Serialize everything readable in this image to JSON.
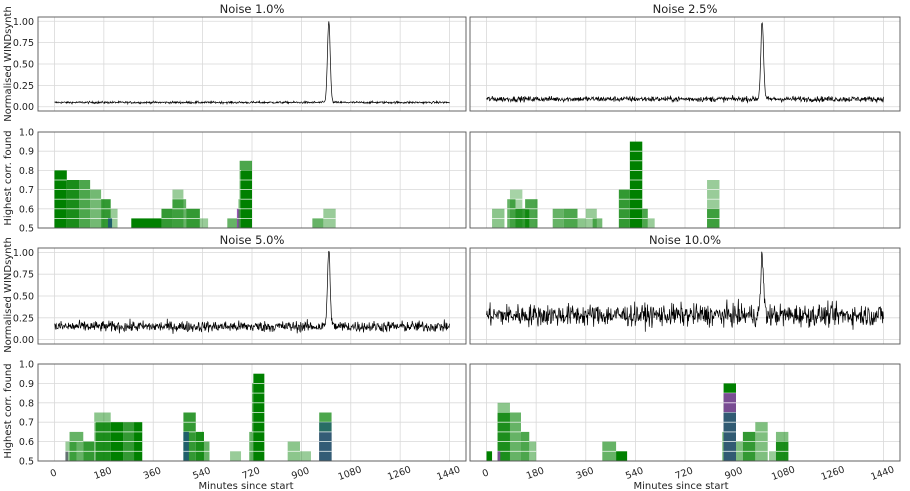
{
  "figure": {
    "xlabel": "Minutes since start",
    "ylabel_signal": "Normalised WINDsynth",
    "ylabel_corr": "Highest corr. found"
  },
  "colors": {
    "signal": "#000000",
    "green": "#008000",
    "purple": "#8e44ad",
    "teal": "#1f5f6b",
    "grid": "#d9d9d9",
    "frame": "#555555"
  },
  "chart_data": [
    {
      "type": "line",
      "title": "Noise 1.0%",
      "noise": 0.01,
      "baseline": 0.05,
      "peak_x": 1000,
      "peak_y": 1.0,
      "xlim": [
        -60,
        1500
      ],
      "ylim": [
        -0.05,
        1.05
      ],
      "yticks": [
        "0.00",
        "0.25",
        "0.50",
        "0.75",
        "1.00"
      ]
    },
    {
      "type": "line",
      "title": "Noise 2.5%",
      "noise": 0.025,
      "baseline": 0.09,
      "peak_x": 1000,
      "peak_y": 1.0,
      "xlim": [
        -60,
        1500
      ],
      "ylim": [
        -0.05,
        1.05
      ],
      "yticks": []
    },
    {
      "type": "bar",
      "title": "",
      "xlim": [
        -60,
        1500
      ],
      "ylim": [
        0.5,
        1.0
      ],
      "yticks": [
        "0.5",
        "0.6",
        "0.7",
        "0.8",
        "0.9",
        "1.0"
      ],
      "bars": [
        {
          "x": 0,
          "w": 45,
          "v": 0.8,
          "c": "green",
          "a": 1
        },
        {
          "x": 45,
          "w": 45,
          "v": 0.75,
          "c": "green",
          "a": 0.9
        },
        {
          "x": 90,
          "w": 40,
          "v": 0.75,
          "c": "green",
          "a": 0.7
        },
        {
          "x": 130,
          "w": 40,
          "v": 0.7,
          "c": "green",
          "a": 0.55
        },
        {
          "x": 170,
          "w": 35,
          "v": 0.65,
          "c": "green",
          "a": 0.8
        },
        {
          "x": 205,
          "w": 25,
          "v": 0.6,
          "c": "green",
          "a": 0.4
        },
        {
          "x": 195,
          "w": 15,
          "v": 0.55,
          "c": "teal",
          "a": 1
        },
        {
          "x": 280,
          "w": 110,
          "v": 0.55,
          "c": "green",
          "a": 1
        },
        {
          "x": 390,
          "w": 40,
          "v": 0.6,
          "c": "green",
          "a": 0.8
        },
        {
          "x": 430,
          "w": 40,
          "v": 0.7,
          "c": "green",
          "a": 0.4
        },
        {
          "x": 430,
          "w": 50,
          "v": 0.65,
          "c": "green",
          "a": 0.6
        },
        {
          "x": 480,
          "w": 50,
          "v": 0.6,
          "c": "green",
          "a": 0.8
        },
        {
          "x": 530,
          "w": 30,
          "v": 0.55,
          "c": "green",
          "a": 0.4
        },
        {
          "x": 630,
          "w": 40,
          "v": 0.55,
          "c": "green",
          "a": 0.6
        },
        {
          "x": 665,
          "w": 10,
          "v": 0.6,
          "c": "purple",
          "a": 0.9
        },
        {
          "x": 675,
          "w": 45,
          "v": 0.85,
          "c": "green",
          "a": 0.7
        },
        {
          "x": 680,
          "w": 40,
          "v": 0.8,
          "c": "green",
          "a": 1
        },
        {
          "x": 670,
          "w": 10,
          "v": 0.65,
          "c": "green",
          "a": 0.4
        },
        {
          "x": 940,
          "w": 40,
          "v": 0.55,
          "c": "green",
          "a": 0.6
        },
        {
          "x": 980,
          "w": 45,
          "v": 0.6,
          "c": "green",
          "a": 0.4
        }
      ]
    },
    {
      "type": "bar",
      "title": "",
      "xlim": [
        -60,
        1500
      ],
      "ylim": [
        0.5,
        1.0
      ],
      "yticks": [],
      "bars": [
        {
          "x": 20,
          "w": 45,
          "v": 0.6,
          "c": "green",
          "a": 0.45
        },
        {
          "x": 85,
          "w": 45,
          "v": 0.7,
          "c": "green",
          "a": 0.35
        },
        {
          "x": 75,
          "w": 30,
          "v": 0.65,
          "c": "green",
          "a": 0.6
        },
        {
          "x": 105,
          "w": 50,
          "v": 0.6,
          "c": "green",
          "a": 0.8
        },
        {
          "x": 140,
          "w": 45,
          "v": 0.65,
          "c": "green",
          "a": 0.7
        },
        {
          "x": 240,
          "w": 40,
          "v": 0.6,
          "c": "green",
          "a": 0.6
        },
        {
          "x": 280,
          "w": 50,
          "v": 0.6,
          "c": "green",
          "a": 0.7
        },
        {
          "x": 330,
          "w": 30,
          "v": 0.55,
          "c": "green",
          "a": 0.45
        },
        {
          "x": 360,
          "w": 40,
          "v": 0.6,
          "c": "green",
          "a": 0.4
        },
        {
          "x": 385,
          "w": 35,
          "v": 0.55,
          "c": "green",
          "a": 0.55
        },
        {
          "x": 480,
          "w": 40,
          "v": 0.7,
          "c": "green",
          "a": 0.8
        },
        {
          "x": 520,
          "w": 45,
          "v": 0.95,
          "c": "green",
          "a": 1
        },
        {
          "x": 565,
          "w": 20,
          "v": 0.6,
          "c": "green",
          "a": 0.7
        },
        {
          "x": 585,
          "w": 25,
          "v": 0.55,
          "c": "green",
          "a": 0.4
        },
        {
          "x": 800,
          "w": 45,
          "v": 0.75,
          "c": "green",
          "a": 0.4
        },
        {
          "x": 800,
          "w": 45,
          "v": 0.6,
          "c": "green",
          "a": 0.6
        }
      ]
    },
    {
      "type": "line",
      "title": "Noise 5.0%",
      "noise": 0.05,
      "baseline": 0.15,
      "peak_x": 1000,
      "peak_y": 1.0,
      "xlim": [
        -60,
        1500
      ],
      "ylim": [
        -0.05,
        1.05
      ],
      "yticks": [
        "0.00",
        "0.25",
        "0.50",
        "0.75",
        "1.00"
      ]
    },
    {
      "type": "line",
      "title": "Noise 10.0%",
      "noise": 0.1,
      "baseline": 0.28,
      "peak_x": 1000,
      "peak_y": 0.95,
      "xlim": [
        -60,
        1500
      ],
      "ylim": [
        -0.05,
        1.05
      ],
      "yticks": []
    },
    {
      "type": "bar",
      "title": "",
      "xlim": [
        -60,
        1500
      ],
      "ylim": [
        0.5,
        1.0
      ],
      "yticks": [
        "0.5",
        "0.6",
        "0.7",
        "0.8",
        "0.9",
        "1.0"
      ],
      "xticks": [
        "0",
        "180",
        "360",
        "540",
        "720",
        "900",
        "1080",
        "1260",
        "1440"
      ],
      "bars": [
        {
          "x": 40,
          "w": 10,
          "v": 0.55,
          "c": "purple",
          "a": 0.8
        },
        {
          "x": 40,
          "w": 40,
          "v": 0.6,
          "c": "green",
          "a": 0.4
        },
        {
          "x": 55,
          "w": 50,
          "v": 0.65,
          "c": "green",
          "a": 0.6
        },
        {
          "x": 105,
          "w": 40,
          "v": 0.6,
          "c": "green",
          "a": 0.8
        },
        {
          "x": 145,
          "w": 60,
          "v": 0.75,
          "c": "green",
          "a": 0.45
        },
        {
          "x": 150,
          "w": 55,
          "v": 0.7,
          "c": "green",
          "a": 0.8
        },
        {
          "x": 205,
          "w": 45,
          "v": 0.7,
          "c": "green",
          "a": 1
        },
        {
          "x": 250,
          "w": 40,
          "v": 0.7,
          "c": "green",
          "a": 0.8
        },
        {
          "x": 290,
          "w": 30,
          "v": 0.7,
          "c": "green",
          "a": 1
        },
        {
          "x": 470,
          "w": 45,
          "v": 0.75,
          "c": "green",
          "a": 0.8
        },
        {
          "x": 470,
          "w": 20,
          "v": 0.65,
          "c": "teal",
          "a": 1
        },
        {
          "x": 515,
          "w": 30,
          "v": 0.65,
          "c": "green",
          "a": 0.9
        },
        {
          "x": 545,
          "w": 20,
          "v": 0.6,
          "c": "green",
          "a": 0.6
        },
        {
          "x": 640,
          "w": 40,
          "v": 0.55,
          "c": "green",
          "a": 0.4
        },
        {
          "x": 710,
          "w": 10,
          "v": 0.65,
          "c": "green",
          "a": 0.6
        },
        {
          "x": 720,
          "w": 40,
          "v": 0.9,
          "c": "green",
          "a": 0.6
        },
        {
          "x": 725,
          "w": 40,
          "v": 0.95,
          "c": "green",
          "a": 1
        },
        {
          "x": 850,
          "w": 45,
          "v": 0.6,
          "c": "green",
          "a": 0.45
        },
        {
          "x": 895,
          "w": 40,
          "v": 0.55,
          "c": "green",
          "a": 0.4
        },
        {
          "x": 965,
          "w": 45,
          "v": 0.75,
          "c": "green",
          "a": 0.7
        },
        {
          "x": 965,
          "w": 45,
          "v": 0.65,
          "c": "purple",
          "a": 0.85
        },
        {
          "x": 965,
          "w": 45,
          "v": 0.7,
          "c": "teal",
          "a": 0.8
        }
      ]
    },
    {
      "type": "bar",
      "title": "",
      "xlim": [
        -60,
        1500
      ],
      "ylim": [
        0.5,
        1.0
      ],
      "yticks": [],
      "xticks": [
        "0",
        "180",
        "360",
        "540",
        "720",
        "900",
        "1080",
        "1260",
        "1440"
      ],
      "bars": [
        {
          "x": 0,
          "w": 20,
          "v": 0.55,
          "c": "green",
          "a": 1
        },
        {
          "x": 40,
          "w": 45,
          "v": 0.8,
          "c": "green",
          "a": 0.45
        },
        {
          "x": 40,
          "w": 45,
          "v": 0.75,
          "c": "green",
          "a": 0.8
        },
        {
          "x": 40,
          "w": 10,
          "v": 0.55,
          "c": "purple",
          "a": 0.8
        },
        {
          "x": 85,
          "w": 40,
          "v": 0.75,
          "c": "green",
          "a": 0.6
        },
        {
          "x": 125,
          "w": 30,
          "v": 0.65,
          "c": "green",
          "a": 0.7
        },
        {
          "x": 155,
          "w": 25,
          "v": 0.6,
          "c": "green",
          "a": 0.45
        },
        {
          "x": 420,
          "w": 50,
          "v": 0.6,
          "c": "green",
          "a": 0.6
        },
        {
          "x": 470,
          "w": 40,
          "v": 0.55,
          "c": "green",
          "a": 1
        },
        {
          "x": 860,
          "w": 45,
          "v": 0.9,
          "c": "green",
          "a": 1
        },
        {
          "x": 860,
          "w": 45,
          "v": 0.85,
          "c": "purple",
          "a": 0.85
        },
        {
          "x": 860,
          "w": 45,
          "v": 0.75,
          "c": "teal",
          "a": 0.8
        },
        {
          "x": 855,
          "w": 5,
          "v": 0.65,
          "c": "green",
          "a": 0.5
        },
        {
          "x": 905,
          "w": 25,
          "v": 0.6,
          "c": "green",
          "a": 0.5
        },
        {
          "x": 930,
          "w": 45,
          "v": 0.65,
          "c": "green",
          "a": 0.8
        },
        {
          "x": 975,
          "w": 45,
          "v": 0.7,
          "c": "green",
          "a": 0.5
        },
        {
          "x": 1025,
          "w": 25,
          "v": 0.55,
          "c": "green",
          "a": 0.4
        },
        {
          "x": 1050,
          "w": 45,
          "v": 0.65,
          "c": "green",
          "a": 0.5
        },
        {
          "x": 1050,
          "w": 45,
          "v": 0.6,
          "c": "green",
          "a": 0.8
        }
      ]
    }
  ]
}
